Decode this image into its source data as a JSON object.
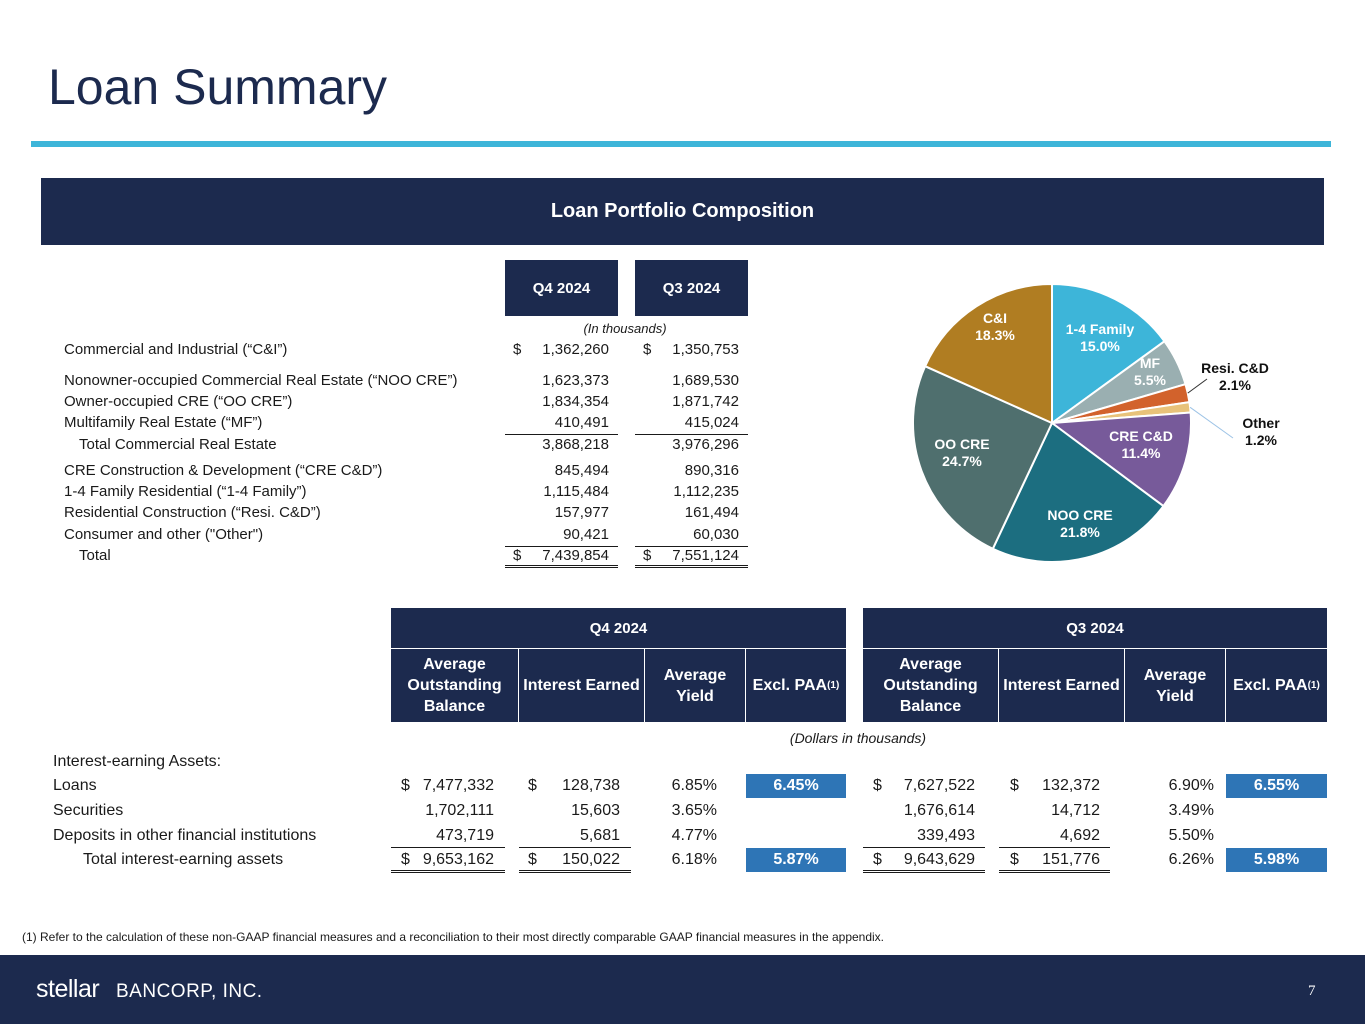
{
  "title": "Loan Summary",
  "banner": "Loan Portfolio Composition",
  "currency": "$",
  "composition_table": {
    "columns": [
      "Q4 2024",
      "Q3 2024"
    ],
    "note": "(In thousands)",
    "rows": [
      {
        "label": "Commercial and Industrial (“C&I”)",
        "prefix": "$",
        "values": [
          "1,362,260",
          "1,350,753"
        ]
      },
      {
        "label": "Nonowner-occupied Commercial Real Estate (“NOO CRE”)",
        "values": [
          "1,623,373",
          "1,689,530"
        ]
      },
      {
        "label": "Owner-occupied CRE (“OO CRE”)",
        "values": [
          "1,834,354",
          "1,871,742"
        ]
      },
      {
        "label": "Multifamily Real Estate (“MF”)",
        "values": [
          "410,491",
          "415,024"
        ]
      },
      {
        "label": "Total Commercial Real Estate",
        "values": [
          "3,868,218",
          "3,976,296"
        ]
      },
      {
        "label": "CRE Construction & Development (“CRE C&D”)",
        "values": [
          "845,494",
          "890,316"
        ]
      },
      {
        "label": "1-4 Family Residential (“1-4 Family”)",
        "values": [
          "1,115,484",
          "1,112,235"
        ]
      },
      {
        "label": "Residential Construction (“Resi. C&D”)",
        "values": [
          "157,977",
          "161,494"
        ]
      },
      {
        "label": "Consumer and other (\"Other\")",
        "values": [
          "90,421",
          "60,030"
        ]
      },
      {
        "label": "Total",
        "prefix": "$",
        "values": [
          "7,439,854",
          "7,551,124"
        ]
      }
    ]
  },
  "chart_data": {
    "type": "pie",
    "categories": [
      "1-4 Family",
      "MF",
      "Resi. C&D",
      "Other",
      "CRE C&D",
      "NOO CRE",
      "OO CRE",
      "C&I"
    ],
    "values": [
      15.0,
      5.5,
      2.1,
      1.2,
      11.4,
      21.8,
      24.7,
      18.3
    ],
    "value_labels": [
      "15.0%",
      "5.5%",
      "2.1%",
      "1.2%",
      "11.4%",
      "21.8%",
      "24.7%",
      "18.3%"
    ],
    "colors": [
      "#3db5d9",
      "#9aafb1",
      "#d2622c",
      "#e8c27a",
      "#775a9a",
      "#1c6e80",
      "#4f6f6e",
      "#b07d22"
    ]
  },
  "yield_table": {
    "periods": [
      "Q4 2024",
      "Q3 2024"
    ],
    "columns": [
      "Average Outstanding Balance",
      "Interest Earned",
      "Average Yield",
      "Excl. PAA"
    ],
    "footnote_mark": "(1)",
    "note": "(Dollars in thousands)",
    "section": "Interest-earning Assets:",
    "rows": [
      {
        "label": "Loans",
        "prefix": "$",
        "values": [
          [
            "7,477,332",
            "128,738",
            "6.85%",
            "6.45%"
          ],
          [
            "7,627,522",
            "132,372",
            "6.90%",
            "6.55%"
          ]
        ]
      },
      {
        "label": "Securities",
        "values": [
          [
            "1,702,111",
            "15,603",
            "3.65%"
          ],
          [
            "1,676,614",
            "14,712",
            "3.49%"
          ]
        ]
      },
      {
        "label": "Deposits in other financial institutions",
        "values": [
          [
            "473,719",
            "5,681",
            "4.77%"
          ],
          [
            "339,493",
            "4,692",
            "5.50%"
          ]
        ]
      },
      {
        "label": "Total interest-earning assets",
        "prefix": "$",
        "values": [
          [
            "9,653,162",
            "150,022",
            "6.18%",
            "5.87%"
          ],
          [
            "9,643,629",
            "151,776",
            "6.26%",
            "5.98%"
          ]
        ]
      }
    ]
  },
  "footnote": "(1) Refer to the calculation of these non-GAAP financial measures and a reconciliation to their most directly comparable GAAP financial measures in the appendix.",
  "footer": {
    "logo_word": "stellar",
    "logo_rest": "BANCORP, INC.",
    "page": "7"
  }
}
